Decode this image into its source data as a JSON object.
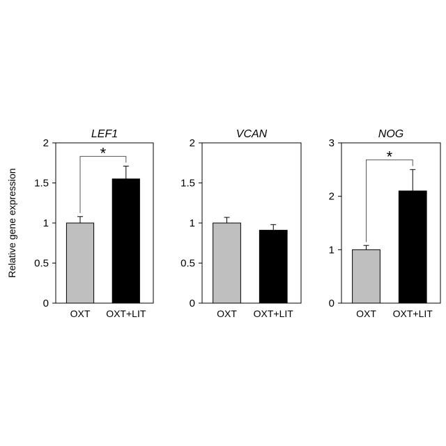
{
  "figure": {
    "ylabel": "Relative gene expression"
  },
  "chart_data": [
    {
      "type": "bar",
      "title": "LEF1",
      "categories": [
        "OXT",
        "OXT+LIT"
      ],
      "values": [
        1.0,
        1.55
      ],
      "errors": [
        0.08,
        0.16
      ],
      "colors": [
        "#bfbfbf",
        "#000000"
      ],
      "ylim": [
        0,
        2
      ],
      "yticks": [
        0,
        0.5,
        1,
        1.5,
        2
      ],
      "ytick_labels": [
        "0",
        "0.5",
        "1",
        "1.5",
        "2"
      ],
      "ylabel": "Relative gene expression",
      "significance": "*"
    },
    {
      "type": "bar",
      "title": "VCAN",
      "categories": [
        "OXT",
        "OXT+LIT"
      ],
      "values": [
        1.0,
        0.91
      ],
      "errors": [
        0.07,
        0.07
      ],
      "colors": [
        "#bfbfbf",
        "#000000"
      ],
      "ylim": [
        0,
        2
      ],
      "yticks": [
        0,
        0.5,
        1,
        1.5,
        2
      ],
      "ytick_labels": [
        "0",
        "0.5",
        "1",
        "1.5",
        "2"
      ],
      "significance": ""
    },
    {
      "type": "bar",
      "title": "NOG",
      "categories": [
        "OXT",
        "OXT+LIT"
      ],
      "values": [
        1.0,
        2.1
      ],
      "errors": [
        0.08,
        0.4
      ],
      "colors": [
        "#bfbfbf",
        "#000000"
      ],
      "ylim": [
        0,
        3
      ],
      "yticks": [
        0,
        1,
        2,
        3
      ],
      "ytick_labels": [
        "0",
        "1",
        "2",
        "3"
      ],
      "significance": "*"
    }
  ]
}
